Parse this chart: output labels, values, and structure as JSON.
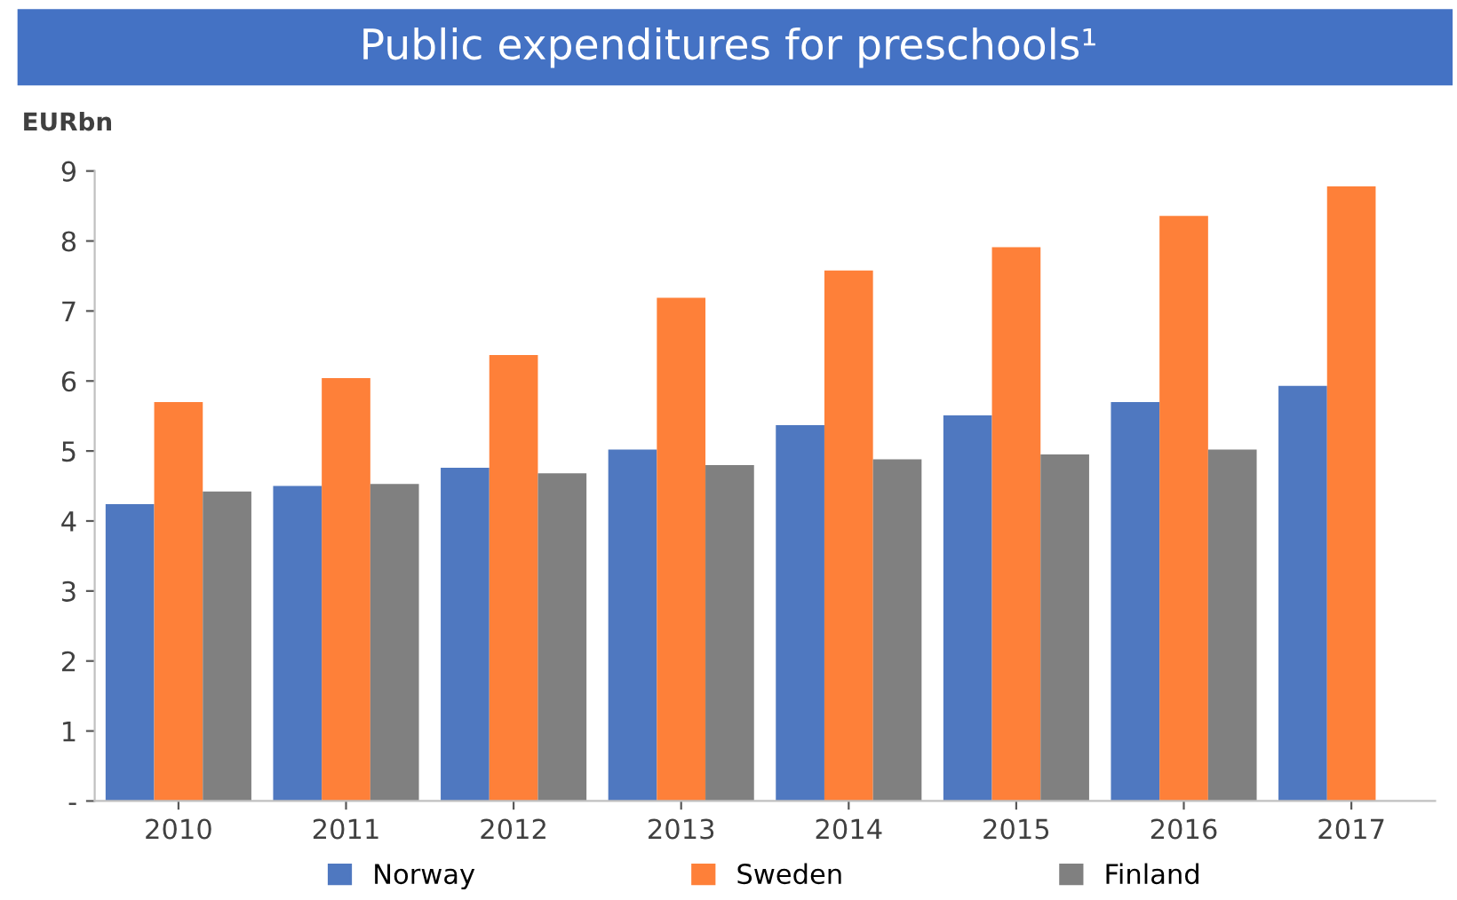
{
  "chart_data": {
    "type": "bar",
    "title": "Public expenditures for preschools¹",
    "ylabel": "EURbn",
    "categories": [
      "2010",
      "2011",
      "2012",
      "2013",
      "2014",
      "2015",
      "2016",
      "2017"
    ],
    "series": [
      {
        "name": "Norway",
        "color": "#4f78c0",
        "values": [
          4.24,
          4.5,
          4.76,
          5.02,
          5.37,
          5.51,
          5.7,
          5.93
        ]
      },
      {
        "name": "Sweden",
        "color": "#fe8039",
        "values": [
          5.7,
          6.04,
          6.37,
          7.19,
          7.58,
          7.91,
          8.36,
          8.78
        ]
      },
      {
        "name": "Finland",
        "color": "#808080",
        "values": [
          4.42,
          4.53,
          4.68,
          4.8,
          4.88,
          4.95,
          5.02,
          null
        ]
      }
    ],
    "ylim": [
      0,
      9
    ],
    "yticks": [
      {
        "value": 0,
        "label": "-"
      },
      1,
      2,
      3,
      4,
      5,
      6,
      7,
      8,
      9
    ],
    "grid": false,
    "legend": "bottom"
  }
}
